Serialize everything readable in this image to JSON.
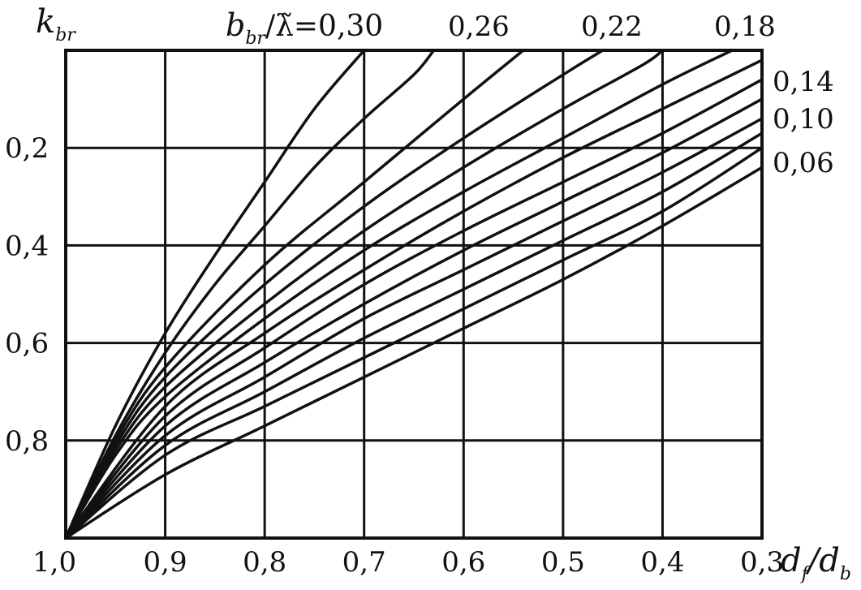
{
  "chart_data": {
    "type": "line",
    "xlabel": {
      "main": "d",
      "sub1": "f",
      "sep": "/",
      "main2": "d",
      "sub2": "b"
    },
    "ylabel": {
      "main": "k",
      "sub": "br"
    },
    "param_label": {
      "main": "b",
      "sub": "br",
      "rest": "/λ̃=0,30"
    },
    "x_ticks": [
      {
        "value": 1.0,
        "label": "1,0"
      },
      {
        "value": 0.9,
        "label": "0,9"
      },
      {
        "value": 0.8,
        "label": "0,8"
      },
      {
        "value": 0.7,
        "label": "0,7"
      },
      {
        "value": 0.6,
        "label": "0,6"
      },
      {
        "value": 0.5,
        "label": "0,5"
      },
      {
        "value": 0.4,
        "label": "0,4"
      },
      {
        "value": 0.3,
        "label": "0,3"
      }
    ],
    "y_ticks": [
      {
        "value": 0.2,
        "label": "0,2"
      },
      {
        "value": 0.4,
        "label": "0,4"
      },
      {
        "value": 0.6,
        "label": "0,6"
      },
      {
        "value": 0.8,
        "label": "0,8"
      }
    ],
    "xlim": [
      1.0,
      0.3
    ],
    "ylim": [
      1.0,
      0.0
    ],
    "grid": true,
    "series_labels_top": [
      "0,26",
      "0,22",
      "0,18"
    ],
    "series_labels_right": [
      "0,14",
      "0,10",
      "0,06"
    ],
    "series": [
      {
        "param": 0.3,
        "values": [
          [
            1.0,
            1.0
          ],
          [
            0.95,
            0.77
          ],
          [
            0.9,
            0.58
          ],
          [
            0.85,
            0.42
          ],
          [
            0.8,
            0.27
          ],
          [
            0.75,
            0.12
          ],
          [
            0.7,
            0.0
          ]
        ]
      },
      {
        "param": 0.28,
        "values": [
          [
            1.0,
            1.0
          ],
          [
            0.95,
            0.79
          ],
          [
            0.9,
            0.62
          ],
          [
            0.85,
            0.48
          ],
          [
            0.8,
            0.36
          ],
          [
            0.75,
            0.24
          ],
          [
            0.7,
            0.14
          ],
          [
            0.65,
            0.05
          ],
          [
            0.63,
            0.0
          ]
        ]
      },
      {
        "param": 0.26,
        "values": [
          [
            1.0,
            1.0
          ],
          [
            0.95,
            0.8
          ],
          [
            0.9,
            0.65
          ],
          [
            0.8,
            0.44
          ],
          [
            0.7,
            0.27
          ],
          [
            0.6,
            0.1
          ],
          [
            0.54,
            0.0
          ]
        ]
      },
      {
        "param": 0.24,
        "values": [
          [
            1.0,
            1.0
          ],
          [
            0.95,
            0.81
          ],
          [
            0.9,
            0.67
          ],
          [
            0.8,
            0.48
          ],
          [
            0.7,
            0.32
          ],
          [
            0.6,
            0.18
          ],
          [
            0.5,
            0.05
          ],
          [
            0.46,
            0.0
          ]
        ]
      },
      {
        "param": 0.22,
        "values": [
          [
            1.0,
            1.0
          ],
          [
            0.95,
            0.82
          ],
          [
            0.9,
            0.69
          ],
          [
            0.8,
            0.52
          ],
          [
            0.7,
            0.37
          ],
          [
            0.6,
            0.24
          ],
          [
            0.5,
            0.12
          ],
          [
            0.42,
            0.03
          ],
          [
            0.4,
            0.0
          ]
        ]
      },
      {
        "param": 0.2,
        "values": [
          [
            1.0,
            1.0
          ],
          [
            0.95,
            0.83
          ],
          [
            0.9,
            0.71
          ],
          [
            0.8,
            0.55
          ],
          [
            0.7,
            0.41
          ],
          [
            0.6,
            0.29
          ],
          [
            0.5,
            0.18
          ],
          [
            0.4,
            0.07
          ],
          [
            0.33,
            0.0
          ]
        ]
      },
      {
        "param": 0.18,
        "values": [
          [
            1.0,
            1.0
          ],
          [
            0.9,
            0.73
          ],
          [
            0.8,
            0.58
          ],
          [
            0.7,
            0.45
          ],
          [
            0.6,
            0.33
          ],
          [
            0.5,
            0.22
          ],
          [
            0.4,
            0.12
          ],
          [
            0.3,
            0.02
          ]
        ]
      },
      {
        "param": 0.16,
        "values": [
          [
            1.0,
            1.0
          ],
          [
            0.9,
            0.75
          ],
          [
            0.8,
            0.61
          ],
          [
            0.7,
            0.48
          ],
          [
            0.6,
            0.37
          ],
          [
            0.5,
            0.27
          ],
          [
            0.4,
            0.17
          ],
          [
            0.3,
            0.06
          ]
        ]
      },
      {
        "param": 0.14,
        "values": [
          [
            1.0,
            1.0
          ],
          [
            0.9,
            0.77
          ],
          [
            0.8,
            0.64
          ],
          [
            0.7,
            0.52
          ],
          [
            0.6,
            0.41
          ],
          [
            0.5,
            0.31
          ],
          [
            0.4,
            0.21
          ],
          [
            0.3,
            0.1
          ]
        ]
      },
      {
        "param": 0.12,
        "values": [
          [
            1.0,
            1.0
          ],
          [
            0.9,
            0.79
          ],
          [
            0.8,
            0.67
          ],
          [
            0.7,
            0.55
          ],
          [
            0.6,
            0.45
          ],
          [
            0.5,
            0.35
          ],
          [
            0.4,
            0.25
          ],
          [
            0.3,
            0.14
          ]
        ]
      },
      {
        "param": 0.1,
        "values": [
          [
            1.0,
            1.0
          ],
          [
            0.9,
            0.81
          ],
          [
            0.8,
            0.7
          ],
          [
            0.7,
            0.59
          ],
          [
            0.6,
            0.49
          ],
          [
            0.5,
            0.39
          ],
          [
            0.4,
            0.29
          ],
          [
            0.3,
            0.17
          ]
        ]
      },
      {
        "param": 0.08,
        "values": [
          [
            1.0,
            1.0
          ],
          [
            0.9,
            0.83
          ],
          [
            0.8,
            0.73
          ],
          [
            0.7,
            0.63
          ],
          [
            0.6,
            0.53
          ],
          [
            0.5,
            0.43
          ],
          [
            0.4,
            0.33
          ],
          [
            0.3,
            0.2
          ]
        ]
      },
      {
        "param": 0.06,
        "values": [
          [
            1.0,
            1.0
          ],
          [
            0.9,
            0.87
          ],
          [
            0.8,
            0.77
          ],
          [
            0.7,
            0.67
          ],
          [
            0.6,
            0.57
          ],
          [
            0.5,
            0.47
          ],
          [
            0.4,
            0.36
          ],
          [
            0.3,
            0.24
          ]
        ]
      }
    ]
  }
}
